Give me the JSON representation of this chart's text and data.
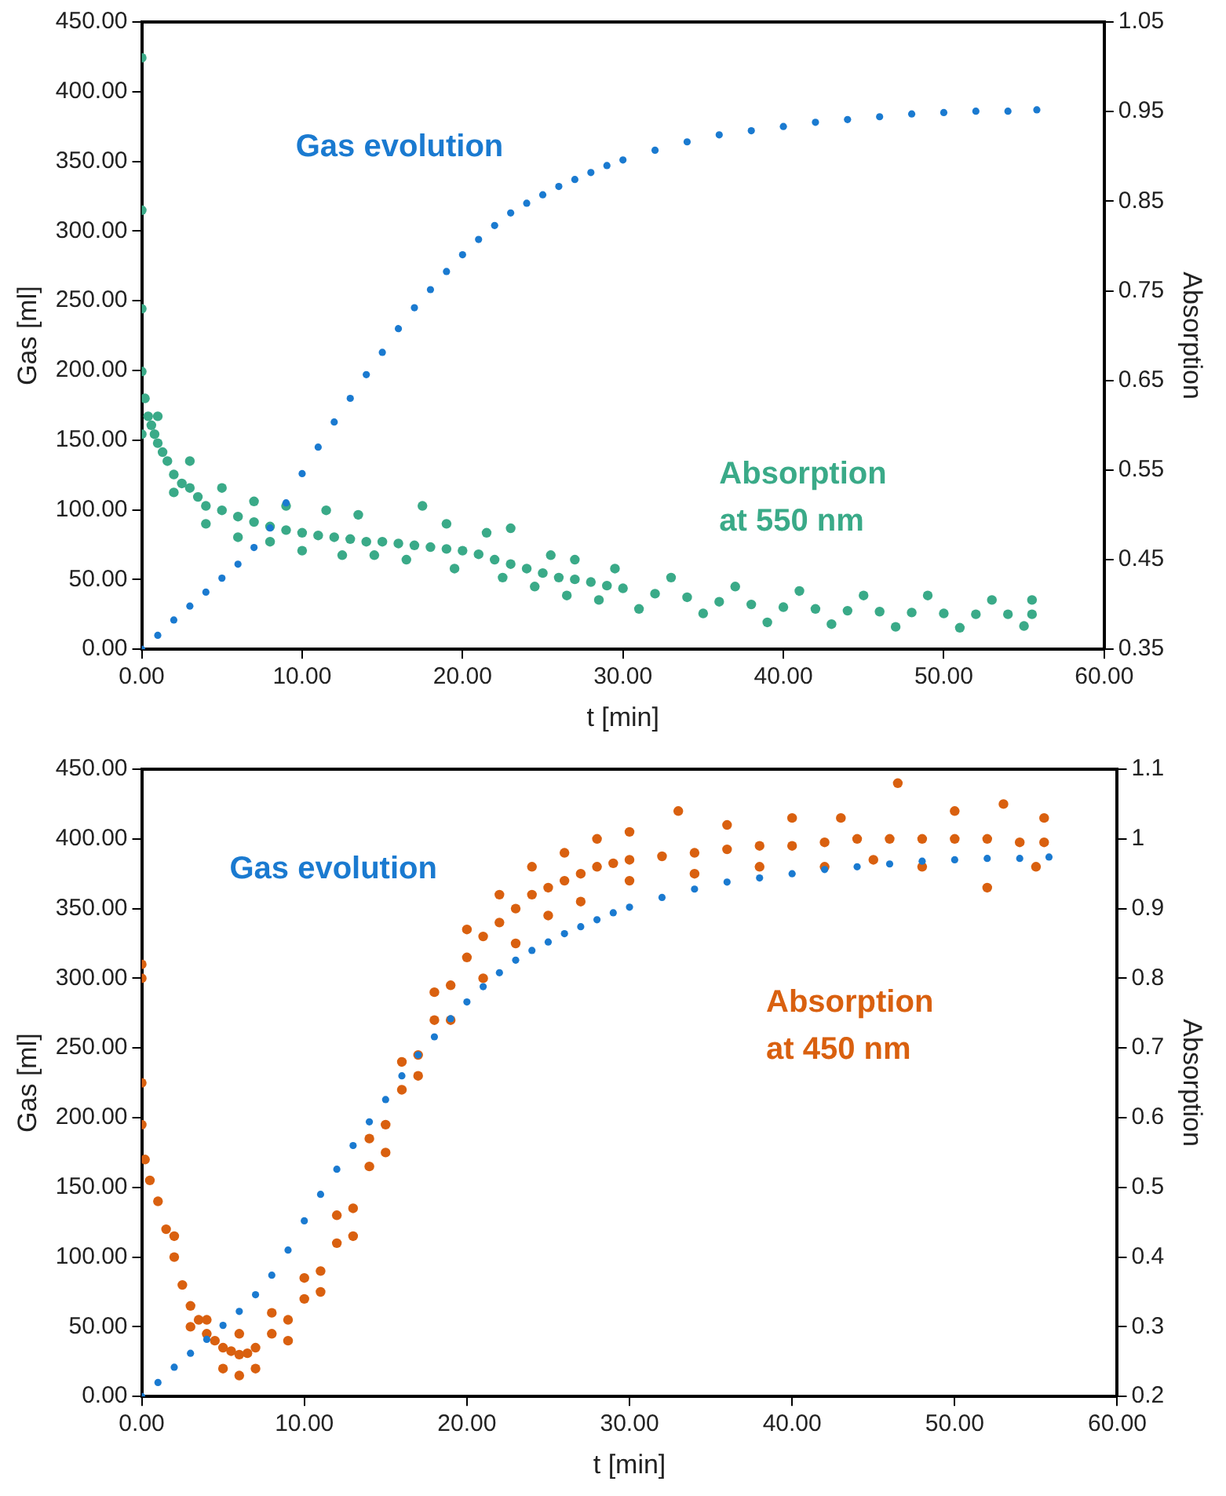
{
  "chart_data": [
    {
      "type": "scatter",
      "xlabel": "t [min]",
      "ylabel": "Gas [ml]",
      "y2label": "Absorption",
      "marker": "circle",
      "grid": false,
      "legend": false,
      "xlim": [
        0,
        60
      ],
      "xticks": [
        {
          "value": 0,
          "label": "0.00"
        },
        {
          "value": 10,
          "label": "10.00"
        },
        {
          "value": 20,
          "label": "20.00"
        },
        {
          "value": 30,
          "label": "30.00"
        },
        {
          "value": 40,
          "label": "40.00"
        },
        {
          "value": 50,
          "label": "50.00"
        },
        {
          "value": 60,
          "label": "60.00"
        }
      ],
      "ylim": [
        0,
        450
      ],
      "yticks": [
        {
          "value": 0,
          "label": "0.00"
        },
        {
          "value": 50,
          "label": "50.00"
        },
        {
          "value": 100,
          "label": "100.00"
        },
        {
          "value": 150,
          "label": "150.00"
        },
        {
          "value": 200,
          "label": "200.00"
        },
        {
          "value": 250,
          "label": "250.00"
        },
        {
          "value": 300,
          "label": "300.00"
        },
        {
          "value": 350,
          "label": "350.00"
        },
        {
          "value": 400,
          "label": "400.00"
        },
        {
          "value": 450,
          "label": "450.00"
        }
      ],
      "y2lim": [
        0.35,
        1.05
      ],
      "y2ticks": [
        0.35,
        0.45,
        0.55,
        0.65,
        0.75,
        0.85,
        0.95,
        1.05
      ],
      "series": [
        {
          "name": "Gas evolution",
          "color": "#1a7ad0",
          "x": [
            0,
            1,
            2,
            3,
            4,
            5,
            6,
            7,
            8,
            9,
            10,
            11,
            12,
            13,
            14,
            15,
            16,
            17,
            18,
            19,
            20,
            21,
            22,
            23,
            24,
            25,
            26,
            27,
            28,
            29,
            30,
            32,
            34,
            36,
            38,
            40,
            42,
            44,
            46,
            48,
            50,
            52,
            54,
            55.8
          ],
          "values": [
            0,
            10,
            21,
            31,
            41,
            51,
            61,
            73,
            87,
            105,
            126,
            145,
            163,
            180,
            197,
            213,
            230,
            245,
            258,
            271,
            283,
            294,
            304,
            313,
            320,
            326,
            332,
            337,
            342,
            347,
            351,
            358,
            364,
            369,
            372,
            375,
            378,
            380,
            382,
            384,
            385,
            386,
            386,
            387
          ]
        },
        {
          "name": "Absorption at 550 nm",
          "color": "#3aaa88",
          "axis": "y2",
          "x": [
            0,
            0,
            0,
            0,
            0,
            0.2,
            0.4,
            0.6,
            0.8,
            1,
            1.3,
            1.6,
            2,
            2.5,
            3,
            3.5,
            4,
            5,
            6,
            7,
            8,
            9,
            10,
            11,
            12,
            13,
            14,
            15,
            16,
            17,
            18,
            19,
            20,
            21,
            22,
            23,
            24,
            25,
            26,
            27,
            28,
            29,
            30,
            32,
            34,
            36,
            38,
            40,
            42,
            44,
            46,
            48,
            50,
            52,
            54,
            55.5,
            1,
            3,
            5,
            7,
            9,
            11.5,
            13.5,
            17.5,
            19,
            21.5,
            23,
            25.5,
            27,
            29.5,
            33,
            37,
            41,
            45,
            49,
            53,
            55.5,
            2,
            4,
            6,
            8,
            10,
            12.5,
            14.5,
            16.5,
            19.5,
            22.5,
            24.5,
            26.5,
            28.5,
            31,
            35,
            39,
            43,
            47,
            51,
            55
          ],
          "values": [
            1.01,
            0.84,
            0.73,
            0.66,
            0.59,
            0.63,
            0.61,
            0.6,
            0.59,
            0.58,
            0.57,
            0.56,
            0.545,
            0.535,
            0.53,
            0.52,
            0.51,
            0.505,
            0.498,
            0.492,
            0.487,
            0.483,
            0.48,
            0.477,
            0.475,
            0.473,
            0.47,
            0.47,
            0.468,
            0.466,
            0.464,
            0.462,
            0.46,
            0.456,
            0.45,
            0.445,
            0.44,
            0.435,
            0.43,
            0.428,
            0.425,
            0.421,
            0.418,
            0.412,
            0.408,
            0.403,
            0.4,
            0.397,
            0.395,
            0.393,
            0.392,
            0.391,
            0.39,
            0.389,
            0.389,
            0.389,
            0.61,
            0.56,
            0.53,
            0.515,
            0.51,
            0.505,
            0.5,
            0.51,
            0.49,
            0.48,
            0.485,
            0.455,
            0.45,
            0.44,
            0.43,
            0.42,
            0.415,
            0.41,
            0.41,
            0.405,
            0.405,
            0.525,
            0.49,
            0.475,
            0.47,
            0.46,
            0.455,
            0.455,
            0.45,
            0.44,
            0.43,
            0.42,
            0.41,
            0.405,
            0.395,
            0.39,
            0.38,
            0.378,
            0.375,
            0.374,
            0.376
          ]
        }
      ]
    },
    {
      "type": "scatter",
      "xlabel": "t [min]",
      "ylabel": "Gas [ml]",
      "y2label": "Absorption",
      "marker": "circle",
      "grid": false,
      "legend": false,
      "xlim": [
        0,
        60
      ],
      "xticks": [
        {
          "value": 0,
          "label": "0.00"
        },
        {
          "value": 10,
          "label": "10.00"
        },
        {
          "value": 20,
          "label": "20.00"
        },
        {
          "value": 30,
          "label": "30.00"
        },
        {
          "value": 40,
          "label": "40.00"
        },
        {
          "value": 50,
          "label": "50.00"
        },
        {
          "value": 60,
          "label": "60.00"
        }
      ],
      "ylim": [
        0,
        450
      ],
      "yticks": [
        {
          "value": 0,
          "label": "0.00"
        },
        {
          "value": 50,
          "label": "50.00"
        },
        {
          "value": 100,
          "label": "100.00"
        },
        {
          "value": 150,
          "label": "150.00"
        },
        {
          "value": 200,
          "label": "200.00"
        },
        {
          "value": 250,
          "label": "250.00"
        },
        {
          "value": 300,
          "label": "300.00"
        },
        {
          "value": 350,
          "label": "350.00"
        },
        {
          "value": 400,
          "label": "400.00"
        },
        {
          "value": 450,
          "label": "450.00"
        }
      ],
      "y2lim": [
        0.2,
        1.1
      ],
      "y2ticks": [
        0.2,
        0.3,
        0.4,
        0.5,
        0.6,
        0.7,
        0.8,
        0.9,
        1,
        1.1
      ],
      "series": [
        {
          "name": "Gas evolution",
          "color": "#1a7ad0",
          "x": [
            0,
            1,
            2,
            3,
            4,
            5,
            6,
            7,
            8,
            9,
            10,
            11,
            12,
            13,
            14,
            15,
            16,
            17,
            18,
            19,
            20,
            21,
            22,
            23,
            24,
            25,
            26,
            27,
            28,
            29,
            30,
            32,
            34,
            36,
            38,
            40,
            42,
            44,
            46,
            48,
            50,
            52,
            54,
            55.8
          ],
          "values": [
            0,
            10,
            21,
            31,
            41,
            51,
            61,
            73,
            87,
            105,
            126,
            145,
            163,
            180,
            197,
            213,
            230,
            245,
            258,
            271,
            283,
            294,
            304,
            313,
            320,
            326,
            332,
            337,
            342,
            347,
            351,
            358,
            364,
            369,
            372,
            375,
            378,
            380,
            382,
            384,
            385,
            386,
            386,
            387
          ]
        },
        {
          "name": "Absorption at 450 nm",
          "color": "#d9600f",
          "axis": "y2",
          "x": [
            0,
            0,
            0,
            0,
            0.2,
            0.5,
            1,
            1.5,
            2,
            2.5,
            3,
            3.5,
            4,
            4.5,
            5,
            5.5,
            6,
            6.5,
            7,
            8,
            9,
            10,
            11,
            12,
            13,
            14,
            15,
            16,
            17,
            18,
            19,
            20,
            21,
            22,
            23,
            24,
            25,
            26,
            27,
            28,
            29,
            30,
            32,
            34,
            36,
            38,
            40,
            42,
            44,
            46,
            48,
            50,
            52,
            54,
            55.5,
            2,
            4,
            6,
            8,
            10,
            12,
            14,
            16,
            18,
            20,
            22,
            24,
            26,
            28,
            30,
            33,
            36,
            40,
            43,
            46.5,
            50,
            53,
            55.5,
            3,
            5,
            6,
            7,
            9,
            11,
            13,
            15,
            17,
            19,
            21,
            23,
            25,
            27,
            30,
            34,
            38,
            42,
            45,
            48,
            52,
            55
          ],
          "values": [
            0.82,
            0.8,
            0.65,
            0.59,
            0.54,
            0.51,
            0.48,
            0.44,
            0.4,
            0.36,
            0.33,
            0.31,
            0.29,
            0.28,
            0.27,
            0.265,
            0.26,
            0.262,
            0.27,
            0.29,
            0.31,
            0.34,
            0.38,
            0.42,
            0.47,
            0.53,
            0.59,
            0.64,
            0.69,
            0.74,
            0.79,
            0.83,
            0.86,
            0.88,
            0.9,
            0.92,
            0.93,
            0.94,
            0.95,
            0.96,
            0.965,
            0.97,
            0.975,
            0.98,
            0.985,
            0.99,
            0.99,
            0.995,
            1.0,
            1.0,
            1.0,
            1.0,
            1.0,
            0.995,
            0.995,
            0.43,
            0.31,
            0.29,
            0.32,
            0.37,
            0.46,
            0.57,
            0.68,
            0.78,
            0.87,
            0.92,
            0.96,
            0.98,
            1.0,
            1.01,
            1.04,
            1.02,
            1.03,
            1.03,
            1.08,
            1.04,
            1.05,
            1.03,
            0.3,
            0.24,
            0.23,
            0.24,
            0.28,
            0.35,
            0.43,
            0.55,
            0.66,
            0.74,
            0.8,
            0.85,
            0.89,
            0.91,
            0.94,
            0.95,
            0.96,
            0.96,
            0.97,
            0.96,
            0.93,
            0.96
          ]
        }
      ]
    }
  ]
}
